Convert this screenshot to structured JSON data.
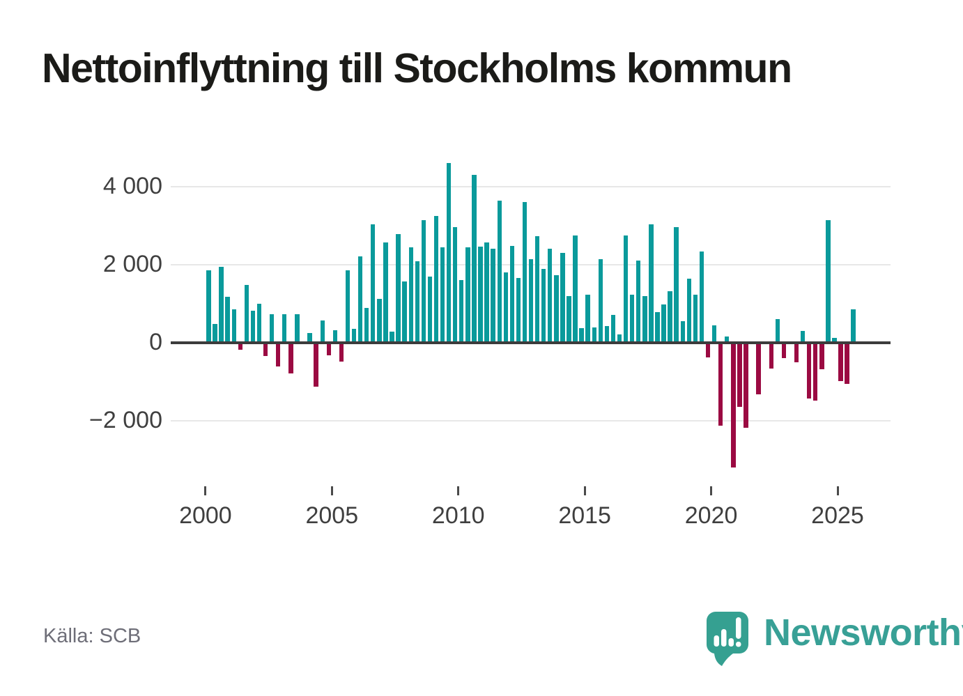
{
  "title": "Nettoinflyttning till Stockholms kommun",
  "source": "Källa: SCB",
  "branding": {
    "name": "Newsworthy",
    "icon": "newsworthy-speech-bubble-chart-icon"
  },
  "colors": {
    "positive": "#0a9a9b",
    "negative": "#9b0a42",
    "zero_line": "#3c3c3c",
    "gridline": "#e7e7e7",
    "axis_text": "#3f3f3f",
    "title_text": "#1b1b18",
    "source_text": "#6e6e78",
    "brand": "#38a096",
    "background": "#ffffff"
  },
  "chart_data": {
    "type": "bar",
    "title": "Nettoinflyttning till Stockholms kommun",
    "frequency": "quarterly",
    "start_year": 2000,
    "start_quarter": 1,
    "end_year": 2025,
    "end_quarter": 3,
    "values": [
      1840,
      470,
      1940,
      1170,
      840,
      -170,
      1470,
      820,
      1000,
      -330,
      730,
      -600,
      730,
      -770,
      730,
      0,
      240,
      -1120,
      570,
      -320,
      310,
      -480,
      1850,
      350,
      2210,
      880,
      3030,
      1120,
      2560,
      280,
      2770,
      1570,
      2440,
      2080,
      3140,
      1690,
      3240,
      2430,
      4590,
      2950,
      1600,
      2430,
      4300,
      2450,
      2570,
      2410,
      3640,
      1790,
      2480,
      1660,
      3590,
      2130,
      2730,
      1890,
      2400,
      1730,
      2300,
      1190,
      2740,
      360,
      1230,
      380,
      2130,
      420,
      700,
      200,
      2750,
      1230,
      2090,
      1190,
      3020,
      780,
      970,
      1310,
      2960,
      540,
      1640,
      1220,
      2330,
      -360,
      440,
      -2120,
      150,
      -3190,
      -1630,
      -2170,
      0,
      -1320,
      0,
      -650,
      590,
      -380,
      0,
      -490,
      300,
      -1420,
      -1480,
      -670,
      3140,
      120,
      -980,
      -1050,
      840
    ],
    "y_ticks": [
      {
        "value": 4000,
        "label": "4 000"
      },
      {
        "value": 2000,
        "label": "2 000"
      },
      {
        "value": 0,
        "label": "0"
      },
      {
        "value": -2000,
        "label": "−2 000"
      }
    ],
    "x_ticks": [
      {
        "year": 2000,
        "label": "2000"
      },
      {
        "year": 2005,
        "label": "2005"
      },
      {
        "year": 2010,
        "label": "2010"
      },
      {
        "year": 2015,
        "label": "2015"
      },
      {
        "year": 2020,
        "label": "2020"
      },
      {
        "year": 2025,
        "label": "2025"
      }
    ],
    "ylim": [
      -3400,
      4800
    ],
    "grid": true,
    "legend": false,
    "xlabel": "",
    "ylabel": ""
  }
}
